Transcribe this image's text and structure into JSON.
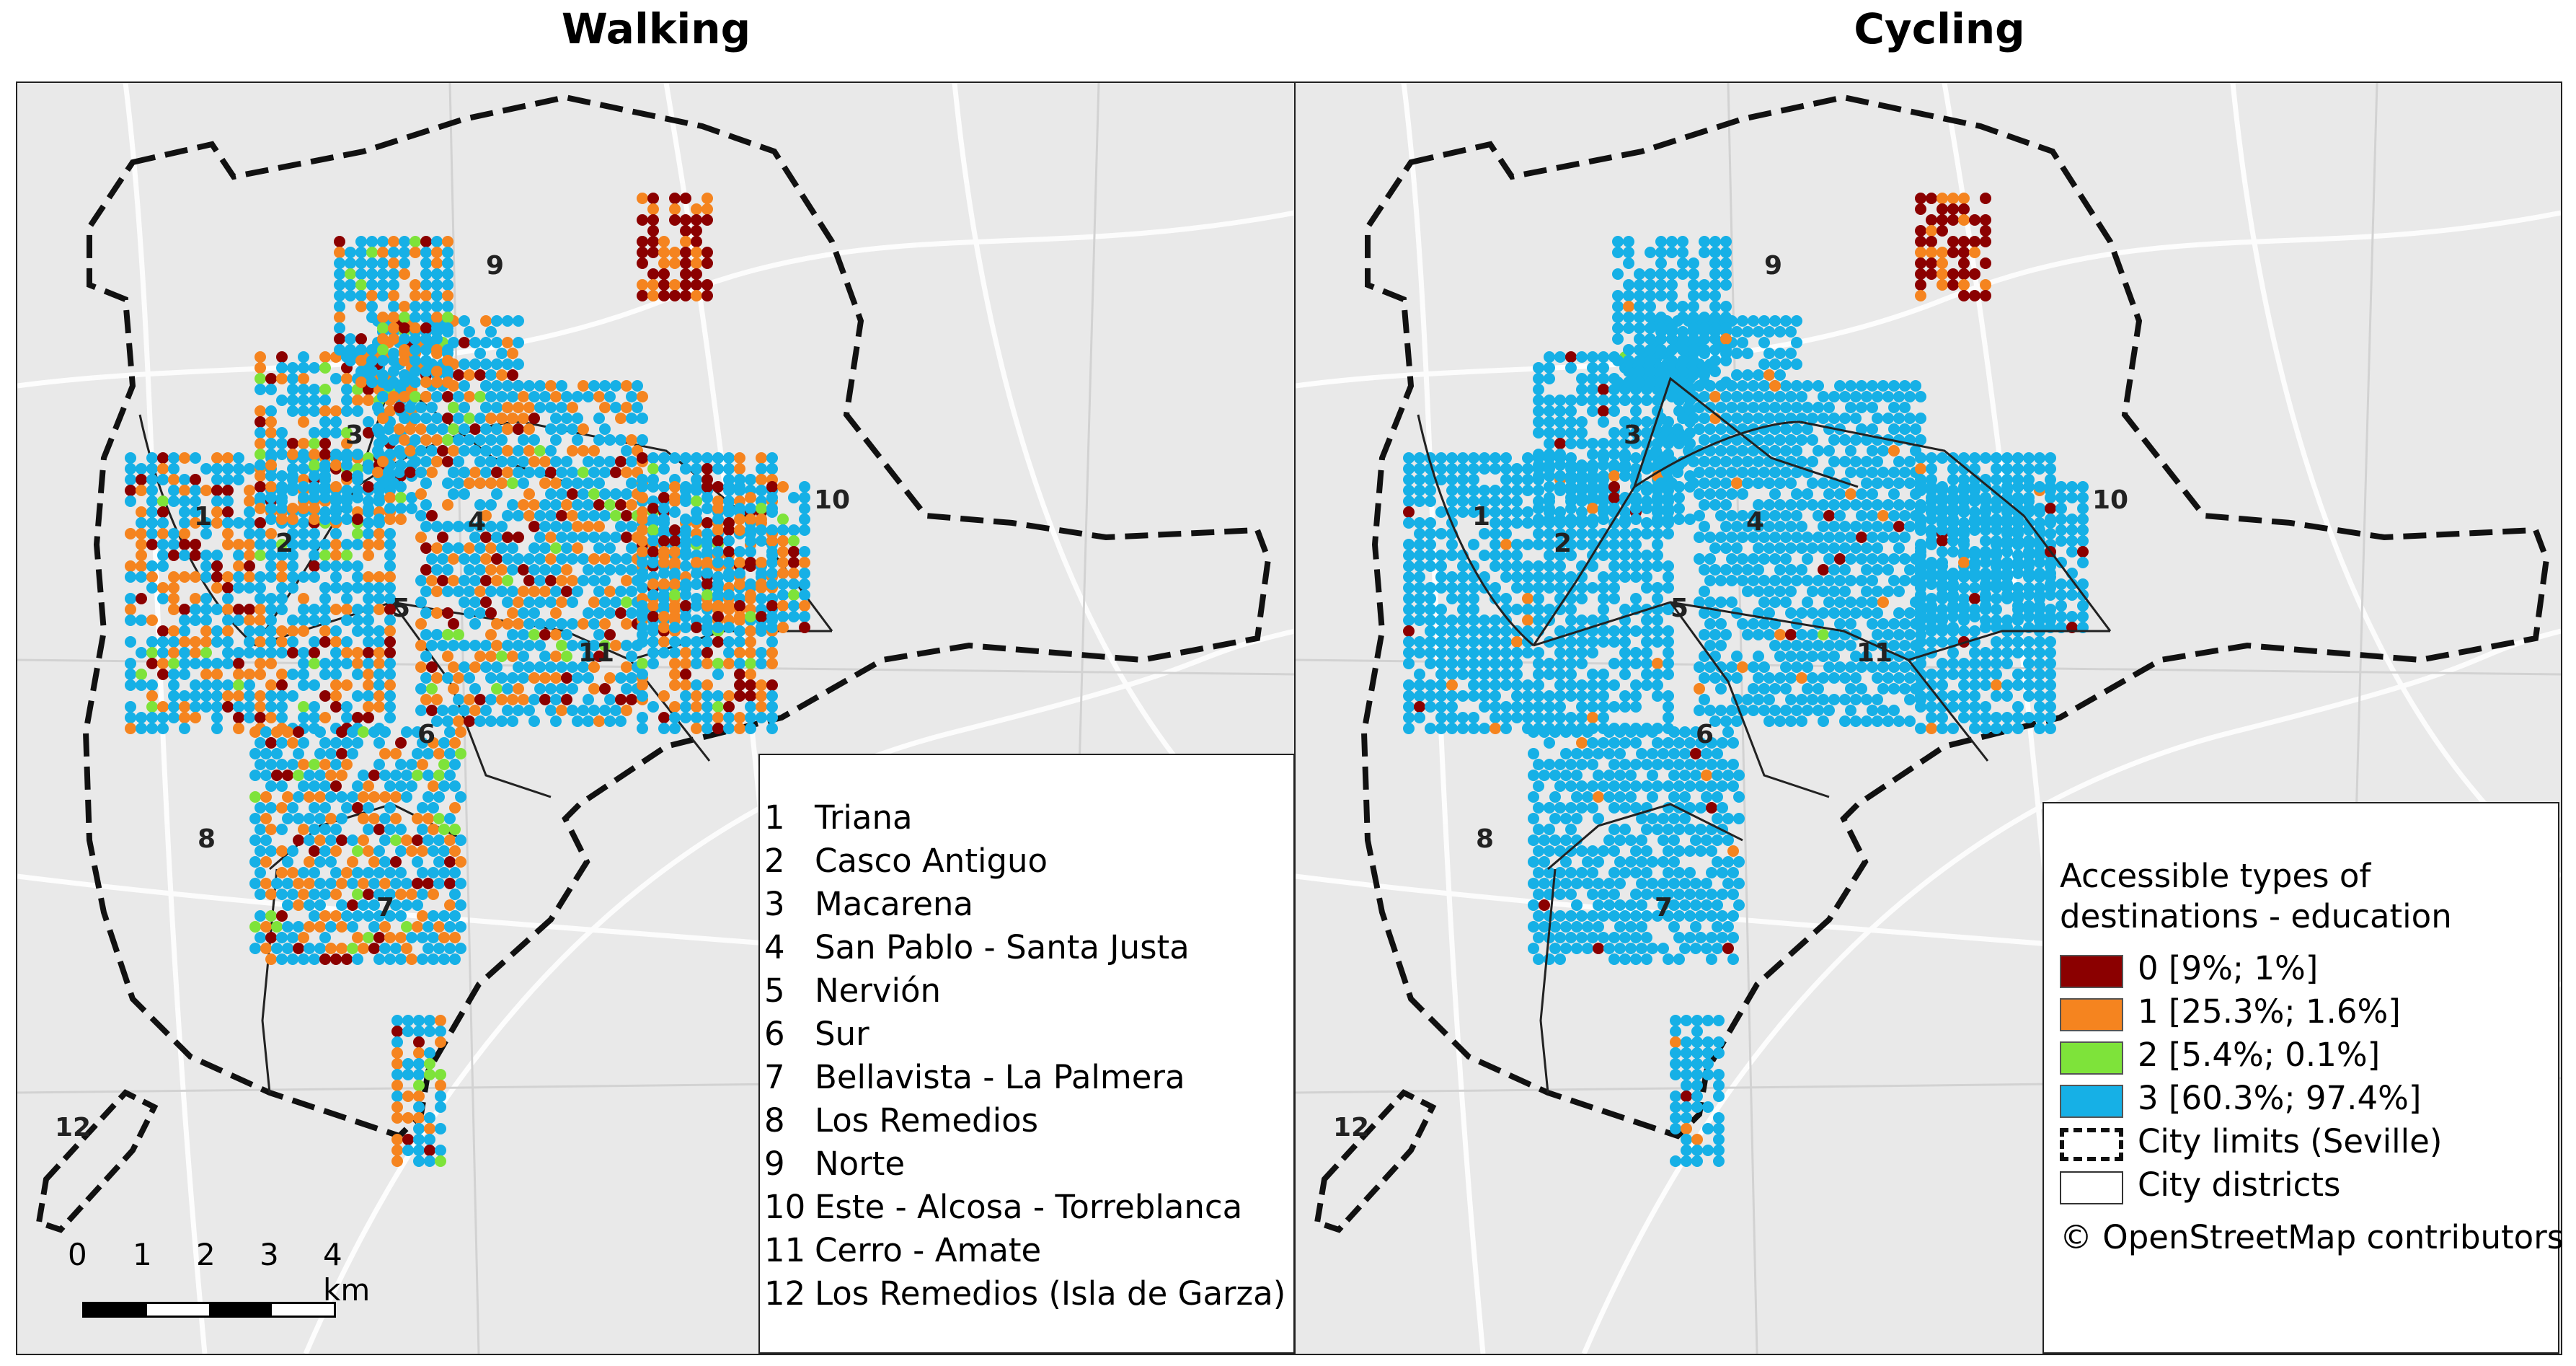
{
  "panels": [
    {
      "title": "Walking"
    },
    {
      "title": "Cycling"
    }
  ],
  "districts": [
    {
      "num": "1",
      "name": "Triana"
    },
    {
      "num": "2",
      "name": "Casco Antiguo"
    },
    {
      "num": "3",
      "name": "Macarena"
    },
    {
      "num": "4",
      "name": "San Pablo - Santa Justa"
    },
    {
      "num": "5",
      "name": "Nervión"
    },
    {
      "num": "6",
      "name": "Sur"
    },
    {
      "num": "7",
      "name": "Bellavista - La Palmera"
    },
    {
      "num": "8",
      "name": "Los Remedios"
    },
    {
      "num": "9",
      "name": "Norte"
    },
    {
      "num": "10",
      "name": "Este - Alcosa - Torreblanca"
    },
    {
      "num": "11",
      "name": "Cerro - Amate"
    },
    {
      "num": "12",
      "name": "Los Remedios (Isla de Garza)"
    }
  ],
  "scale": {
    "ticks": [
      "0",
      "1",
      "2",
      "3",
      "4 km"
    ]
  },
  "legend": {
    "title_line1": "Accessible types of",
    "title_line2": "destinations - education",
    "classes": [
      {
        "label": "0 [9%; 1%]",
        "color": "#8b0000"
      },
      {
        "label": "1 [25.3%; 1.6%]",
        "color": "#f5841f"
      },
      {
        "label": "2 [5.4%; 0.1%]",
        "color": "#7ee33a"
      },
      {
        "label": "3 [60.3%; 97.4%]",
        "color": "#16b0e6"
      }
    ],
    "city_limits": "City limits (Seville)",
    "city_districts": "City districts",
    "attribution": "© OpenStreetMap contributors"
  }
}
